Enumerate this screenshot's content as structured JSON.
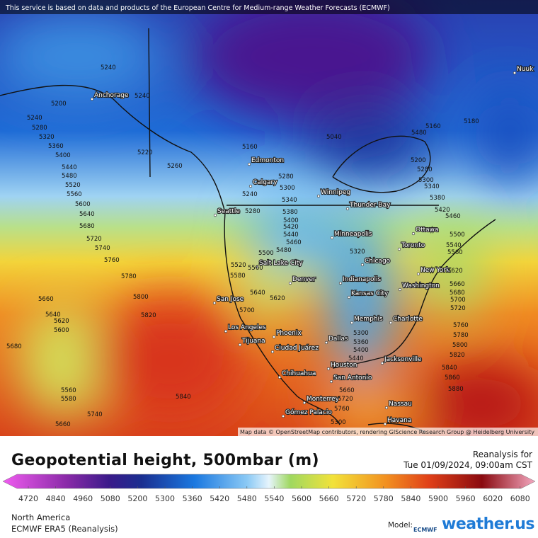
{
  "map": {
    "notice": "This service is based on data and products of the European Centre for Medium-range Weather Forecasts (ECMWF)",
    "attribution": "Map data © OpenStreetMap contributors, rendering GIScience Research Group @ Heidelberg University",
    "cities": [
      "Nuuk",
      "Anchorage",
      "Edmonton",
      "Calgary",
      "Winnipeg",
      "Thunder Bay",
      "Seattle",
      "Minneapolis",
      "Ottawa",
      "Toronto",
      "Chicago",
      "Salt Lake City",
      "Denver",
      "New York",
      "Indianapolis",
      "Washington",
      "Kansas City",
      "San Jose",
      "Memphis",
      "Charlotte",
      "Los Angeles",
      "Phoenix",
      "Dallas",
      "Tijuana",
      "Ciudad Juárez",
      "Jacksonville",
      "Houston",
      "Chihuahua",
      "San Antonio",
      "Monterrey",
      "Nassau",
      "Gómez Palacio",
      "Havana"
    ],
    "contour_labels": [
      5240,
      5240,
      5200,
      5240,
      5280,
      5320,
      5360,
      5400,
      5440,
      5480,
      5520,
      5560,
      5600,
      5640,
      5680,
      5720,
      5740,
      5760,
      5780,
      5800,
      5820,
      5840,
      5660,
      5640,
      5620,
      5600,
      5680,
      5560,
      5580,
      5740,
      5660,
      5220,
      5260,
      5160,
      5280,
      5300,
      5240,
      5280,
      5340,
      5380,
      5400,
      5420,
      5440,
      5460,
      5480,
      5500,
      5520,
      5580,
      5560,
      5640,
      5620,
      5700,
      5320,
      5300,
      5360,
      5400,
      5440,
      5660,
      5720,
      5760,
      5300,
      5040,
      5160,
      5180,
      5380,
      5420,
      5460,
      5500,
      5540,
      5560,
      5620,
      5660,
      5680,
      5700,
      5720,
      5760,
      5780,
      5800,
      5820,
      5840,
      5860,
      5880,
      5200,
      5280,
      5300,
      5340,
      5480
    ]
  },
  "title": "Geopotential height, 500mbar (m)",
  "run": {
    "label": "Reanalysis for",
    "time": "Tue 01/09/2024, 09:00am CST"
  },
  "legend": {
    "ticks": [
      4720,
      4840,
      4960,
      5080,
      5200,
      5300,
      5360,
      5420,
      5480,
      5540,
      5600,
      5660,
      5720,
      5780,
      5840,
      5900,
      5960,
      6020,
      6080
    ]
  },
  "region": "North America",
  "model_name": "ECMWF ERA5 (Reanalysis)",
  "model_label": "Model:",
  "ecmwf": "ECMWF",
  "brand": "weather.us"
}
